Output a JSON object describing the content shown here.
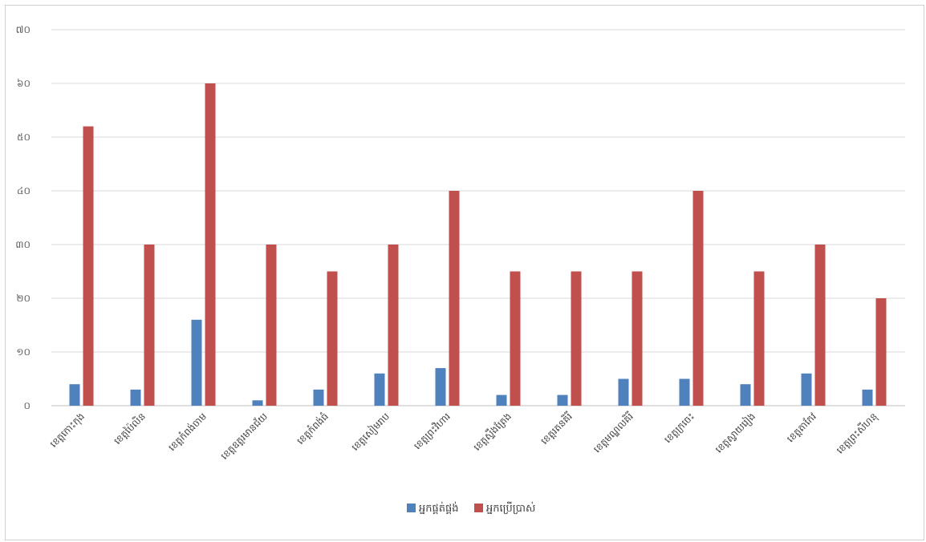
{
  "chart_data": {
    "type": "bar",
    "title": "",
    "xlabel": "",
    "ylabel": "",
    "ylim": [
      0,
      70
    ],
    "yticks": [
      "០",
      "១០",
      "២០",
      "៣០",
      "៤០",
      "៥០",
      "៦០",
      "៧០"
    ],
    "grid": true,
    "legend_position": "bottom",
    "categories": [
      "ខេត្តកោះកុង",
      "ខេត្តប៉ៃលិន",
      "ខេត្តកំពង់ចាម",
      "ខេត្តឧត្តរមានជ័យ",
      "ខេត្តកំពង់ធំ",
      "ខេត្តសៀមរាប",
      "ខេត្តព្រះវិហារ",
      "ខេត្តស្ទឹងត្រែង",
      "ខេត្តរតនគិរី",
      "ខេត្តមណ្ឌលគិរី",
      "ខេត្តក្រចេះ",
      "ខេត្តស្វាយរៀង",
      "ខេត្តតាកែវ",
      "ខេត្តព្រះសីហនុ"
    ],
    "series": [
      {
        "name": "អ្នកផ្គត់ផ្គង់",
        "color": "#4f81bd",
        "values": [
          4,
          3,
          16,
          1,
          3,
          6,
          7,
          2,
          2,
          5,
          5,
          4,
          6,
          3
        ]
      },
      {
        "name": "អ្នកប្រើប្រាស់",
        "color": "#c0504d",
        "values": [
          52,
          30,
          60,
          30,
          25,
          30,
          40,
          25,
          25,
          25,
          40,
          25,
          30,
          20
        ]
      }
    ]
  }
}
